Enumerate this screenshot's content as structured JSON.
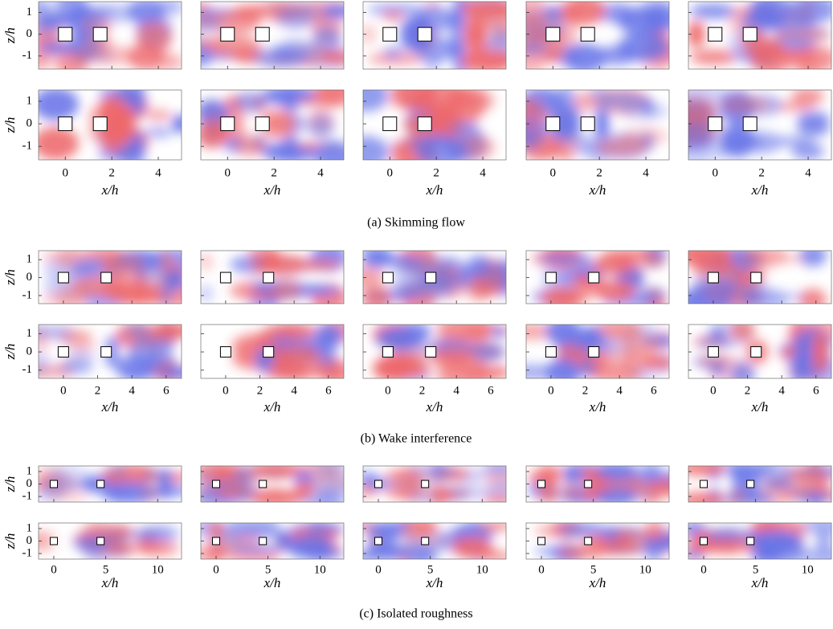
{
  "figure": {
    "sections": [
      {
        "caption": "(a) Skimming flow",
        "xlabel": "x/h",
        "ylabel": "z/h",
        "xlim": [
          -1.15,
          5
        ],
        "ylim": [
          -1.6,
          1.5
        ],
        "xticks": [
          0,
          2,
          4
        ],
        "yticks": [
          -1,
          0,
          1
        ],
        "roughness_x": [
          0,
          1.5
        ]
      },
      {
        "caption": "(b) Wake interference",
        "xlabel": "x/h",
        "ylabel": "z/h",
        "xlim": [
          -1.45,
          6.9
        ],
        "ylim": [
          -1.45,
          1.5
        ],
        "xticks": [
          0,
          2,
          4,
          6
        ],
        "yticks": [
          -1,
          0,
          1
        ],
        "roughness_x": [
          0,
          2.5
        ]
      },
      {
        "caption": "(c) Isolated roughness",
        "xlabel": "x/h",
        "ylabel": "z/h",
        "xlim": [
          -1.47,
          12.3
        ],
        "ylim": [
          -1.45,
          1.45
        ],
        "xticks": [
          0,
          5,
          10
        ],
        "yticks": [
          -1,
          0,
          1
        ],
        "roughness_x": [
          0,
          4.5
        ]
      }
    ]
  }
}
